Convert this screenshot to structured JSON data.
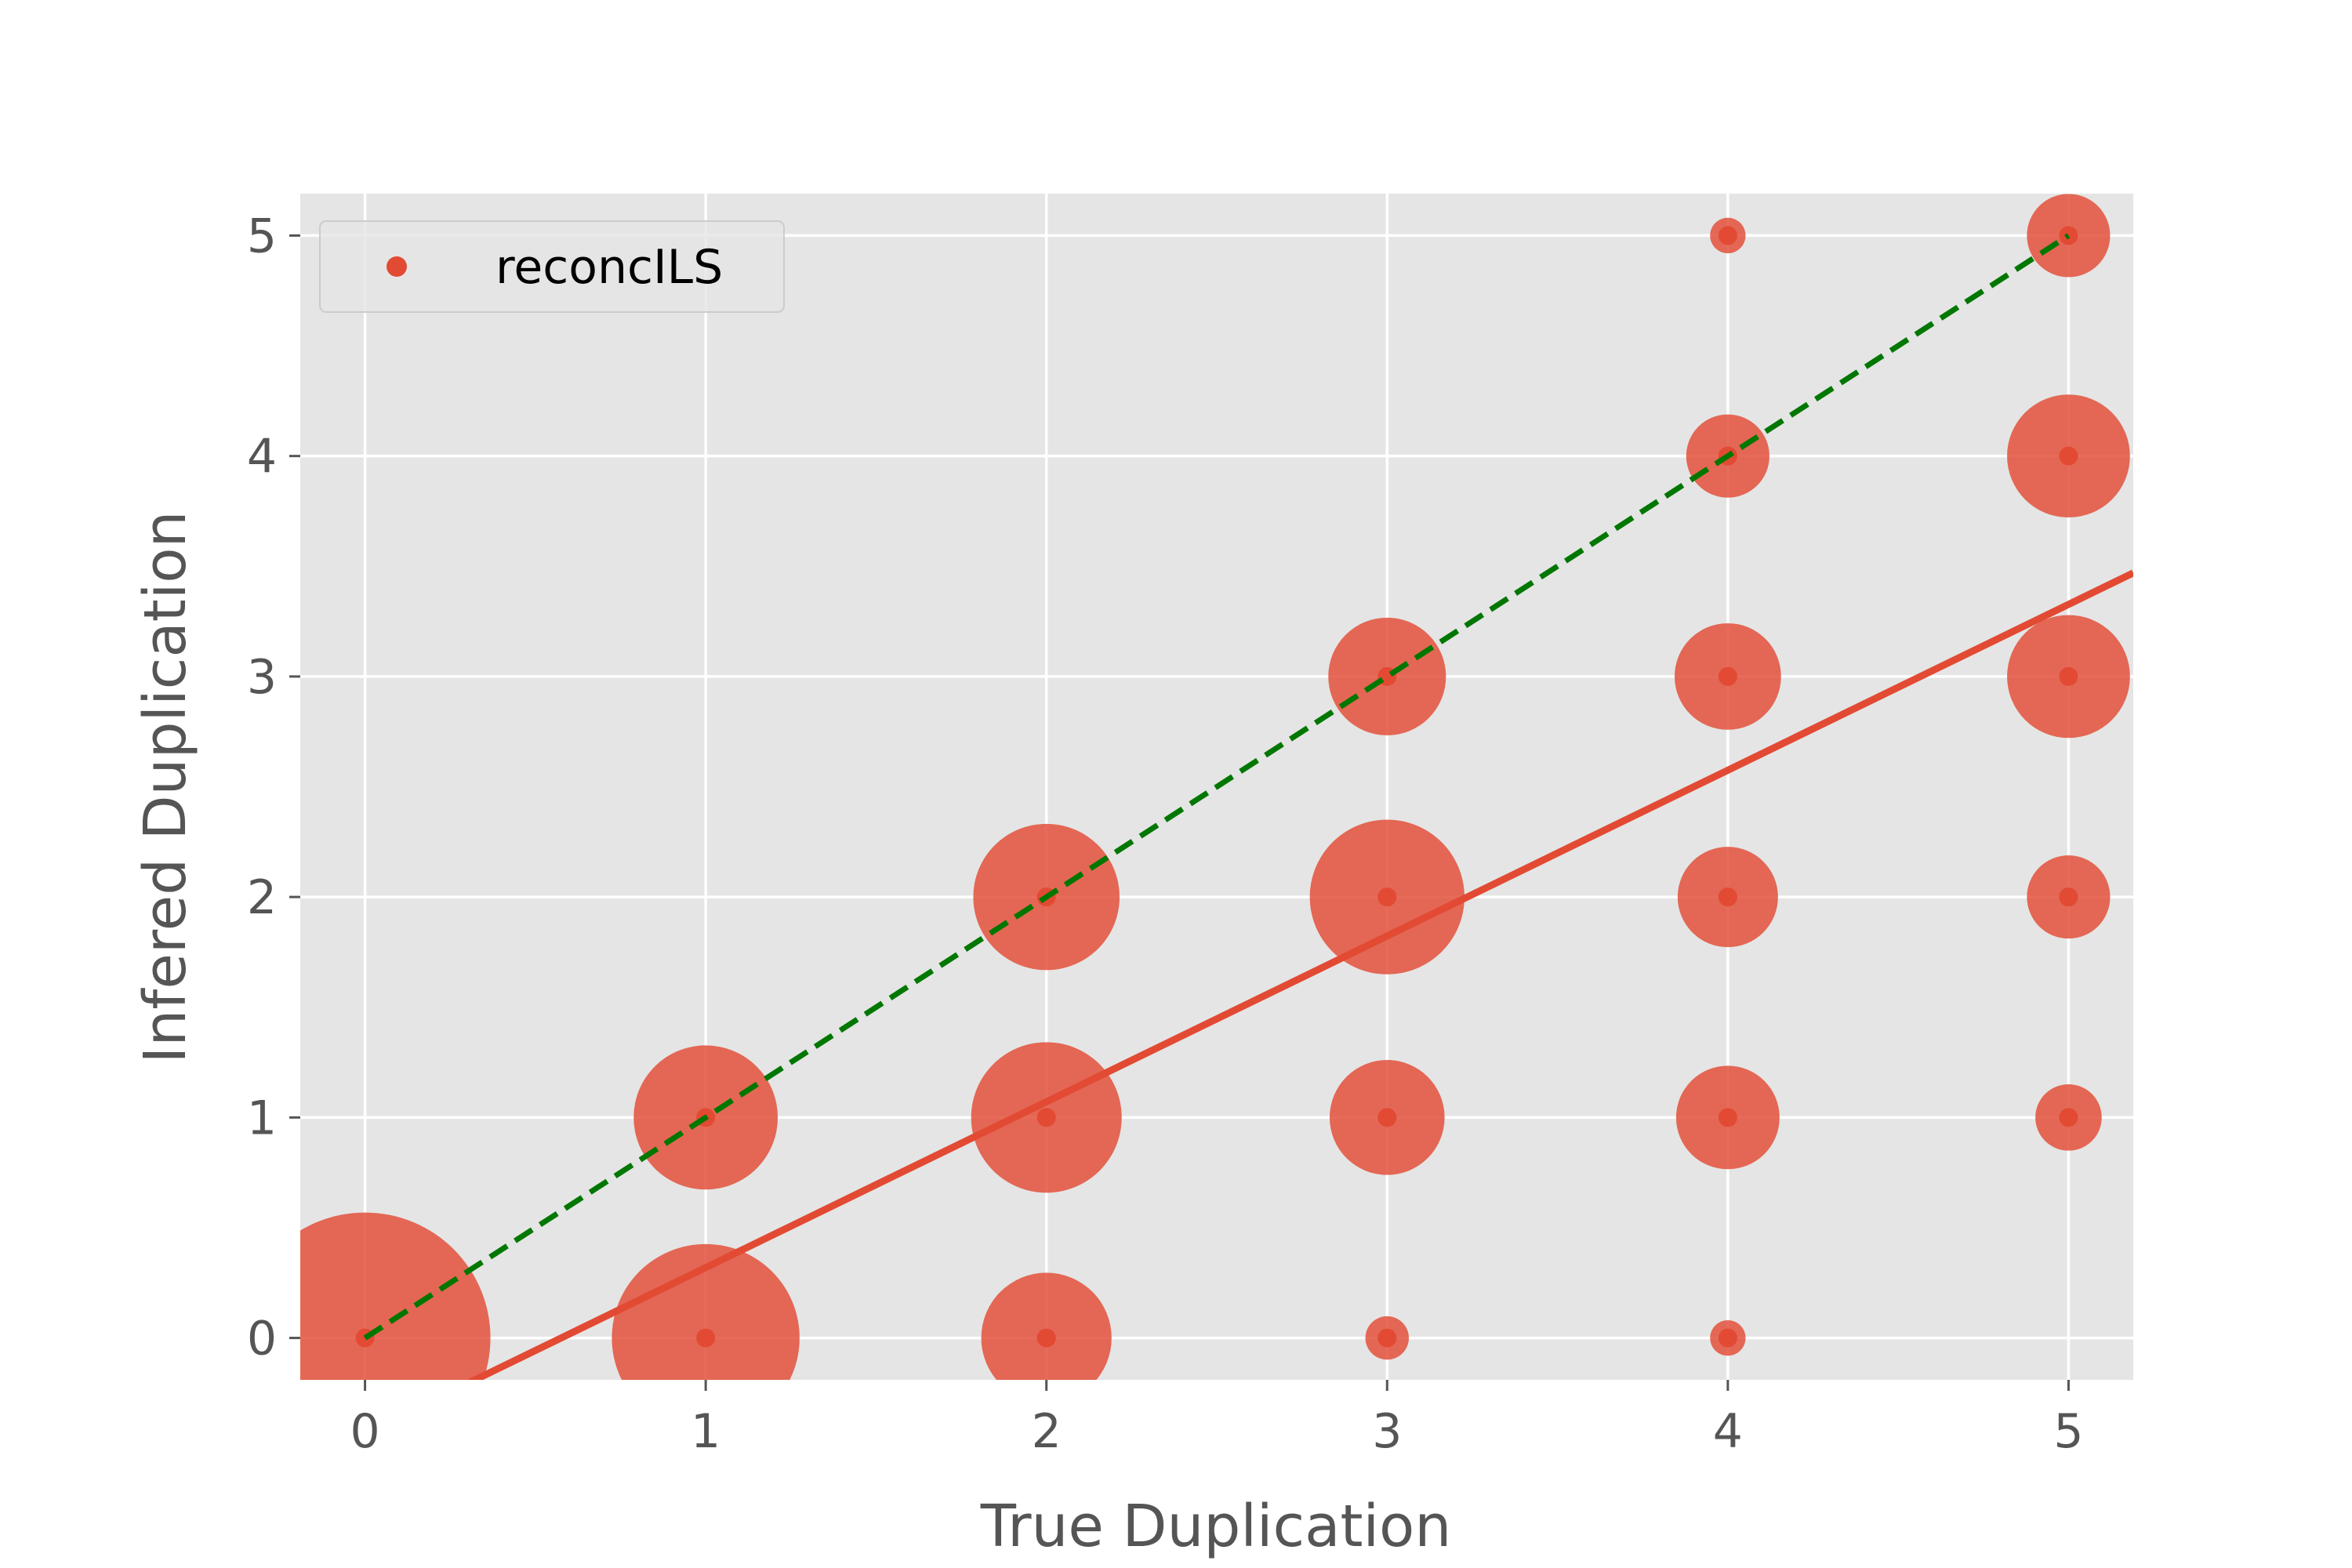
{
  "chart_data": {
    "type": "scatter",
    "title": "",
    "xlabel": "True Duplication",
    "ylabel": "Infered Duplication",
    "xlim": [
      -0.19,
      5.19
    ],
    "ylim": [
      -0.19,
      5.19
    ],
    "xticks": [
      "0",
      "1",
      "2",
      "3",
      "4",
      "5"
    ],
    "yticks": [
      "0",
      "1",
      "2",
      "3",
      "4",
      "5"
    ],
    "grid": true,
    "legend": {
      "position": "top-left",
      "entries": [
        "reconcILS"
      ]
    },
    "series": [
      {
        "name": "reconcILS",
        "color": "#E24A33",
        "points": [
          {
            "x": 0,
            "y": 0,
            "size": 100
          },
          {
            "x": 1,
            "y": 0,
            "size": 56
          },
          {
            "x": 1,
            "y": 1,
            "size": 33
          },
          {
            "x": 2,
            "y": 0,
            "size": 27
          },
          {
            "x": 2,
            "y": 1,
            "size": 36
          },
          {
            "x": 2,
            "y": 2,
            "size": 34
          },
          {
            "x": 3,
            "y": 0,
            "size": 3
          },
          {
            "x": 3,
            "y": 1,
            "size": 21
          },
          {
            "x": 3,
            "y": 2,
            "size": 38
          },
          {
            "x": 3,
            "y": 3,
            "size": 22
          },
          {
            "x": 4,
            "y": 0,
            "size": 2
          },
          {
            "x": 4,
            "y": 1,
            "size": 17
          },
          {
            "x": 4,
            "y": 2,
            "size": 16
          },
          {
            "x": 4,
            "y": 3,
            "size": 18
          },
          {
            "x": 4,
            "y": 4,
            "size": 11
          },
          {
            "x": 4,
            "y": 5,
            "size": 2
          },
          {
            "x": 5,
            "y": 1,
            "size": 7
          },
          {
            "x": 5,
            "y": 2,
            "size": 11
          },
          {
            "x": 5,
            "y": 3,
            "size": 24
          },
          {
            "x": 5,
            "y": 4,
            "size": 24
          },
          {
            "x": 5,
            "y": 5,
            "size": 11
          }
        ]
      }
    ],
    "lines": [
      {
        "kind": "regression",
        "style": "solid",
        "color": "#E24A33",
        "slope": 0.752,
        "intercept": -0.433
      },
      {
        "kind": "identity",
        "style": "dashed",
        "color": "#007700",
        "from": [
          0,
          0
        ],
        "to": [
          5,
          5
        ]
      }
    ]
  }
}
